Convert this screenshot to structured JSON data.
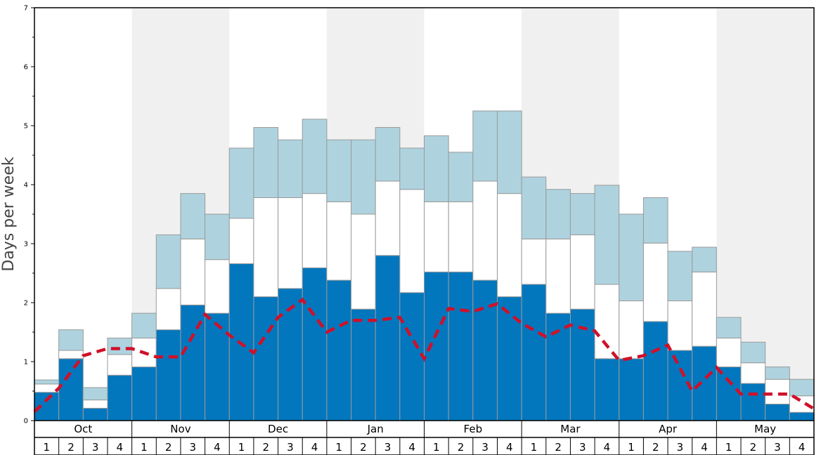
{
  "chart_data": {
    "type": "bar",
    "ylabel": "Days per week",
    "ylim": [
      0,
      7
    ],
    "yticks": [
      "0",
      "1",
      "2",
      "3",
      "4",
      "5",
      "6",
      "7"
    ],
    "months": [
      "Oct",
      "Nov",
      "Dec",
      "Jan",
      "Feb",
      "Mar",
      "Apr",
      "May"
    ],
    "weeks": [
      "1",
      "2",
      "3",
      "4"
    ],
    "stacked": true,
    "series": [
      {
        "name": "dark",
        "color": "#0277bd",
        "values": [
          0.48,
          1.05,
          0.21,
          0.77,
          0.91,
          1.54,
          1.96,
          1.82,
          2.66,
          2.1,
          2.24,
          2.59,
          2.38,
          1.89,
          2.8,
          2.17,
          2.52,
          2.52,
          2.38,
          2.1,
          2.31,
          1.82,
          1.89,
          1.05,
          1.05,
          1.68,
          1.19,
          1.26,
          0.91,
          0.63,
          0.28,
          0.14
        ]
      },
      {
        "name": "white",
        "color": "#ffffff",
        "values": [
          0.14,
          0.14,
          0.14,
          0.35,
          0.49,
          0.7,
          1.12,
          0.91,
          0.77,
          1.68,
          1.54,
          1.26,
          1.33,
          1.61,
          1.26,
          1.75,
          1.19,
          1.19,
          1.68,
          1.75,
          0.77,
          1.26,
          1.26,
          1.26,
          0.98,
          1.33,
          0.84,
          1.26,
          0.49,
          0.35,
          0.42,
          0.28
        ]
      },
      {
        "name": "light",
        "color": "#aed3df",
        "values": [
          0.07,
          0.35,
          0.21,
          0.28,
          0.42,
          0.91,
          0.77,
          0.77,
          1.19,
          1.19,
          0.98,
          1.26,
          1.05,
          1.26,
          0.91,
          0.7,
          1.12,
          0.84,
          1.19,
          1.4,
          1.05,
          0.84,
          0.7,
          1.68,
          1.47,
          0.77,
          0.84,
          0.42,
          0.35,
          0.35,
          0.21,
          0.28
        ]
      }
    ],
    "average_line": {
      "color": "#d0102a",
      "style": "dashed",
      "values": [
        0.15,
        0.55,
        1.1,
        1.22,
        1.22,
        1.08,
        1.08,
        1.8,
        1.45,
        1.15,
        1.75,
        2.05,
        1.5,
        1.7,
        1.7,
        1.75,
        1.05,
        1.9,
        1.85,
        1.98,
        1.65,
        1.42,
        1.62,
        1.52,
        1.02,
        1.1,
        1.28,
        0.5,
        0.9,
        0.45,
        0.45,
        0.45,
        0.2
      ]
    },
    "grid": false
  }
}
